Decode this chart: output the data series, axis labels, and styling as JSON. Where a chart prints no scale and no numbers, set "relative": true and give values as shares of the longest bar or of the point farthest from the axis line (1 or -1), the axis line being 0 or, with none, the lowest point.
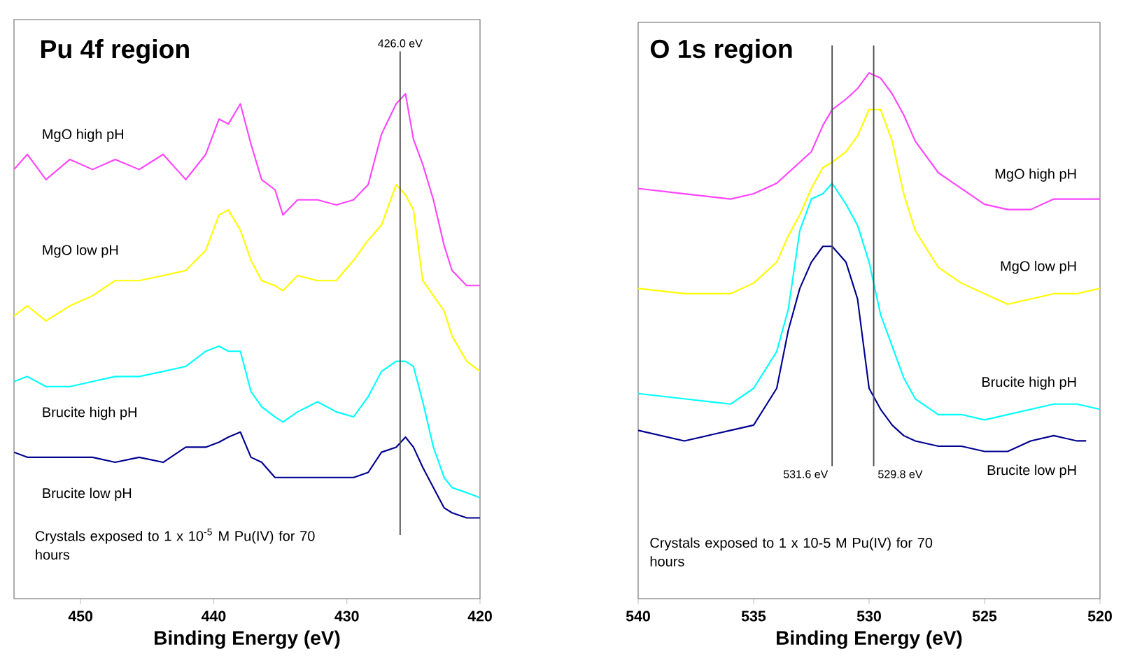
{
  "chart_data": [
    {
      "type": "line",
      "title": "Pu 4f region",
      "xlabel": "Binding Energy (eV)",
      "relative": true,
      "xlim": [
        455,
        420
      ],
      "xticks": [
        450,
        440,
        430,
        420
      ],
      "x": [
        455.0,
        454.0,
        452.6,
        450.8,
        449.1,
        447.4,
        445.6,
        443.8,
        442.1,
        440.6,
        439.6,
        438.9,
        438.0,
        437.2,
        436.4,
        435.4,
        434.8,
        433.7,
        432.2,
        430.8,
        429.5,
        428.4,
        427.4,
        426.3,
        425.6,
        425.0,
        424.3,
        423.5,
        422.7,
        422.1,
        421.0,
        420.0
      ],
      "series": [
        {
          "name": "MgO high pH",
          "color": "#ff44ff",
          "values": [
            0.85,
            0.88,
            0.83,
            0.87,
            0.85,
            0.87,
            0.85,
            0.88,
            0.83,
            0.88,
            0.95,
            0.94,
            0.98,
            0.9,
            0.83,
            0.81,
            0.76,
            0.79,
            0.79,
            0.78,
            0.79,
            0.82,
            0.92,
            0.98,
            1.0,
            0.91,
            0.86,
            0.79,
            0.7,
            0.65,
            0.62,
            0.62
          ]
        },
        {
          "name": "MgO low pH",
          "color": "#ffff00",
          "values": [
            0.56,
            0.58,
            0.55,
            0.58,
            0.6,
            0.63,
            0.63,
            0.64,
            0.65,
            0.69,
            0.76,
            0.77,
            0.73,
            0.67,
            0.63,
            0.62,
            0.61,
            0.64,
            0.63,
            0.63,
            0.67,
            0.71,
            0.74,
            0.82,
            0.8,
            0.77,
            0.63,
            0.6,
            0.57,
            0.52,
            0.47,
            0.45
          ]
        },
        {
          "name": "Brucite high pH",
          "color": "#00ffff",
          "values": [
            0.43,
            0.44,
            0.42,
            0.42,
            0.43,
            0.44,
            0.44,
            0.45,
            0.46,
            0.49,
            0.5,
            0.49,
            0.49,
            0.41,
            0.38,
            0.36,
            0.35,
            0.37,
            0.39,
            0.37,
            0.36,
            0.4,
            0.45,
            0.47,
            0.47,
            0.46,
            0.39,
            0.3,
            0.24,
            0.22,
            0.21,
            0.2
          ]
        },
        {
          "name": "Brucite low pH",
          "color": "#000090",
          "values": [
            0.29,
            0.28,
            0.28,
            0.28,
            0.28,
            0.27,
            0.28,
            0.27,
            0.3,
            0.3,
            0.31,
            0.32,
            0.33,
            0.28,
            0.27,
            0.24,
            0.24,
            0.24,
            0.24,
            0.24,
            0.24,
            0.25,
            0.29,
            0.3,
            0.32,
            0.3,
            0.26,
            0.22,
            0.18,
            0.17,
            0.16,
            0.16
          ]
        }
      ],
      "ref_lines": [
        {
          "axis": "x",
          "value": 426.0,
          "label": "426.0 eV"
        }
      ],
      "annotations": [
        "Crystals exposed to 1 x 10$^{-5}$ M Pu(IV) for 70 hours"
      ]
    },
    {
      "type": "line",
      "title": "O 1s region",
      "xlabel": "Binding Energy (eV)",
      "relative": true,
      "xlim": [
        540,
        520
      ],
      "xticks": [
        540,
        535,
        530,
        525,
        520
      ],
      "x": [
        540,
        538,
        536,
        535,
        534,
        533.5,
        533,
        532.5,
        532,
        531.6,
        531,
        530.5,
        530,
        529.5,
        529,
        528.5,
        528,
        527,
        526,
        525,
        524,
        523,
        522,
        521,
        520
      ],
      "series": [
        {
          "name": "MgO high pH",
          "color": "#ff44ff",
          "values": [
            0.78,
            0.77,
            0.76,
            0.77,
            0.79,
            0.81,
            0.83,
            0.85,
            0.9,
            0.93,
            0.95,
            0.97,
            1.0,
            0.99,
            0.96,
            0.92,
            0.87,
            0.81,
            0.78,
            0.75,
            0.74,
            0.74,
            0.76,
            0.76,
            0.76
          ]
        },
        {
          "name": "MgO low pH",
          "color": "#ffff00",
          "values": [
            0.59,
            0.58,
            0.58,
            0.6,
            0.64,
            0.69,
            0.73,
            0.78,
            0.82,
            0.83,
            0.85,
            0.88,
            0.93,
            0.93,
            0.87,
            0.77,
            0.7,
            0.63,
            0.6,
            0.58,
            0.56,
            0.57,
            0.58,
            0.58,
            0.59
          ]
        },
        {
          "name": "Brucite high pH",
          "color": "#00ffff",
          "values": [
            0.39,
            0.38,
            0.37,
            0.4,
            0.47,
            0.55,
            0.7,
            0.76,
            0.77,
            0.79,
            0.75,
            0.71,
            0.64,
            0.54,
            0.48,
            0.42,
            0.38,
            0.35,
            0.35,
            0.34,
            0.35,
            0.36,
            0.37,
            0.37,
            0.36
          ]
        },
        {
          "name": "Brucite low pH",
          "color": "#000090",
          "x": [
            540,
            538,
            536,
            535,
            534,
            533.5,
            533,
            532.5,
            532,
            531.6,
            531,
            530.5,
            530,
            529.5,
            529,
            528.5,
            528,
            527,
            526,
            525,
            524,
            523,
            522,
            521,
            520.6
          ],
          "values": [
            0.32,
            0.3,
            0.32,
            0.33,
            0.4,
            0.51,
            0.59,
            0.64,
            0.67,
            0.67,
            0.64,
            0.57,
            0.4,
            0.36,
            0.33,
            0.31,
            0.3,
            0.29,
            0.29,
            0.28,
            0.28,
            0.3,
            0.31,
            0.3,
            0.3
          ]
        }
      ],
      "ref_lines": [
        {
          "axis": "x",
          "value": 531.6,
          "label": "531.6 eV"
        },
        {
          "axis": "x",
          "value": 529.8,
          "label": "529.8 eV"
        }
      ],
      "annotations": [
        "Crystals exposed to 1 x 10-5 M Pu(IV) for 70 hours"
      ]
    }
  ]
}
